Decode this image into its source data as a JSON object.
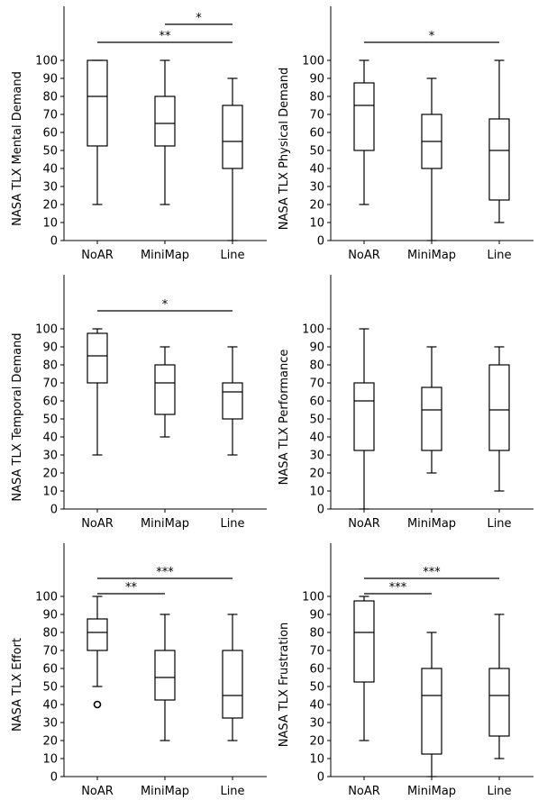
{
  "chart_data": [
    {
      "type": "box",
      "categories": [
        "NoAR",
        "MiniMap",
        "Line"
      ],
      "ylabel": "NASA TLX Mental Demand",
      "ylim": [
        0,
        100
      ],
      "yticks": [
        0,
        10,
        20,
        30,
        40,
        50,
        60,
        70,
        80,
        90,
        100
      ],
      "boxes": [
        {
          "whislo": 20,
          "q1": 52.5,
          "med": 80,
          "q3": 100,
          "whishi": 100,
          "fliers": []
        },
        {
          "whislo": 20,
          "q1": 52.5,
          "med": 65,
          "q3": 80,
          "whishi": 100,
          "fliers": []
        },
        {
          "whislo": 0,
          "q1": 40,
          "med": 55,
          "q3": 75,
          "whishi": 90,
          "fliers": []
        }
      ],
      "significance": [
        {
          "from": "NoAR",
          "to": "Line",
          "label": "**"
        },
        {
          "from": "MiniMap",
          "to": "Line",
          "label": "*"
        }
      ]
    },
    {
      "type": "box",
      "categories": [
        "NoAR",
        "MiniMap",
        "Line"
      ],
      "ylabel": "NASA TLX Physical Demand",
      "ylim": [
        0,
        100
      ],
      "yticks": [
        0,
        10,
        20,
        30,
        40,
        50,
        60,
        70,
        80,
        90,
        100
      ],
      "boxes": [
        {
          "whislo": 20,
          "q1": 50,
          "med": 75,
          "q3": 87.5,
          "whishi": 100,
          "fliers": []
        },
        {
          "whislo": 0,
          "q1": 40,
          "med": 55,
          "q3": 70,
          "whishi": 90,
          "fliers": []
        },
        {
          "whislo": 10,
          "q1": 22.5,
          "med": 50,
          "q3": 67.5,
          "whishi": 100,
          "fliers": []
        }
      ],
      "significance": [
        {
          "from": "NoAR",
          "to": "Line",
          "label": "*"
        }
      ]
    },
    {
      "type": "box",
      "categories": [
        "NoAR",
        "MiniMap",
        "Line"
      ],
      "ylabel": "NASA TLX Temporal Demand",
      "ylim": [
        0,
        100
      ],
      "yticks": [
        0,
        10,
        20,
        30,
        40,
        50,
        60,
        70,
        80,
        90,
        100
      ],
      "boxes": [
        {
          "whislo": 30,
          "q1": 70,
          "med": 85,
          "q3": 97.5,
          "whishi": 100,
          "fliers": []
        },
        {
          "whislo": 40,
          "q1": 52.5,
          "med": 70,
          "q3": 80,
          "whishi": 90,
          "fliers": []
        },
        {
          "whislo": 30,
          "q1": 50,
          "med": 65,
          "q3": 70,
          "whishi": 90,
          "fliers": []
        }
      ],
      "significance": [
        {
          "from": "NoAR",
          "to": "Line",
          "label": "*"
        }
      ]
    },
    {
      "type": "box",
      "categories": [
        "NoAR",
        "MiniMap",
        "Line"
      ],
      "ylabel": "NASA TLX Performance",
      "ylim": [
        0,
        100
      ],
      "yticks": [
        0,
        10,
        20,
        30,
        40,
        50,
        60,
        70,
        80,
        90,
        100
      ],
      "boxes": [
        {
          "whislo": 0,
          "q1": 32.5,
          "med": 60,
          "q3": 70,
          "whishi": 100,
          "fliers": []
        },
        {
          "whislo": 20,
          "q1": 32.5,
          "med": 55,
          "q3": 67.5,
          "whishi": 90,
          "fliers": []
        },
        {
          "whislo": 10,
          "q1": 32.5,
          "med": 55,
          "q3": 80,
          "whishi": 90,
          "fliers": []
        }
      ],
      "significance": []
    },
    {
      "type": "box",
      "categories": [
        "NoAR",
        "MiniMap",
        "Line"
      ],
      "ylabel": "NASA TLX Effort",
      "ylim": [
        0,
        100
      ],
      "yticks": [
        0,
        10,
        20,
        30,
        40,
        50,
        60,
        70,
        80,
        90,
        100
      ],
      "boxes": [
        {
          "whislo": 50,
          "q1": 70,
          "med": 80,
          "q3": 87.5,
          "whishi": 100,
          "fliers": [
            40
          ]
        },
        {
          "whislo": 20,
          "q1": 42.5,
          "med": 55,
          "q3": 70,
          "whishi": 90,
          "fliers": []
        },
        {
          "whislo": 20,
          "q1": 32.5,
          "med": 45,
          "q3": 70,
          "whishi": 90,
          "fliers": []
        }
      ],
      "significance": [
        {
          "from": "NoAR",
          "to": "Line",
          "label": "***"
        },
        {
          "from": "NoAR",
          "to": "MiniMap",
          "label": "**"
        }
      ]
    },
    {
      "type": "box",
      "categories": [
        "NoAR",
        "MiniMap",
        "Line"
      ],
      "ylabel": "NASA TLX Frustration",
      "ylim": [
        0,
        100
      ],
      "yticks": [
        0,
        10,
        20,
        30,
        40,
        50,
        60,
        70,
        80,
        90,
        100
      ],
      "boxes": [
        {
          "whislo": 20,
          "q1": 52.5,
          "med": 80,
          "q3": 97.5,
          "whishi": 100,
          "fliers": []
        },
        {
          "whislo": 0,
          "q1": 12.5,
          "med": 45,
          "q3": 60,
          "whishi": 80,
          "fliers": []
        },
        {
          "whislo": 10,
          "q1": 22.5,
          "med": 45,
          "q3": 60,
          "whishi": 90,
          "fliers": []
        }
      ],
      "significance": [
        {
          "from": "NoAR",
          "to": "Line",
          "label": "***"
        },
        {
          "from": "NoAR",
          "to": "MiniMap",
          "label": "***"
        }
      ]
    }
  ]
}
